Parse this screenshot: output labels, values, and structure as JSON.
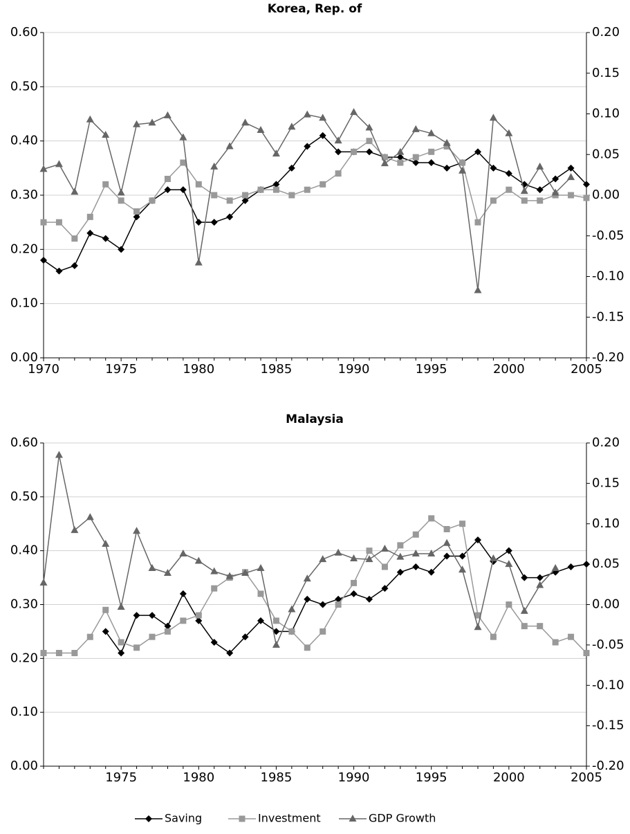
{
  "chart_data": [
    {
      "type": "line",
      "title": "Korea, Rep. of",
      "x": [
        1970,
        1971,
        1972,
        1973,
        1974,
        1975,
        1976,
        1977,
        1978,
        1979,
        1980,
        1981,
        1982,
        1983,
        1984,
        1985,
        1986,
        1987,
        1988,
        1989,
        1990,
        1991,
        1992,
        1993,
        1994,
        1995,
        1996,
        1997,
        1998,
        1999,
        2000,
        2001,
        2002,
        2003,
        2004,
        2005
      ],
      "xlim": [
        1970,
        2005
      ],
      "xticks": [
        1970,
        1975,
        1980,
        1985,
        1990,
        1995,
        2000,
        2005
      ],
      "ylim": [
        0,
        0.6
      ],
      "yticks": [
        {
          "value": 0,
          "label": "0.00"
        },
        {
          "value": 0.1,
          "label": "0.10"
        },
        {
          "value": 0.2,
          "label": "0.20"
        },
        {
          "value": 0.3,
          "label": "0.30"
        },
        {
          "value": 0.4,
          "label": "0.40"
        },
        {
          "value": 0.5,
          "label": "0.50"
        },
        {
          "value": 0.6,
          "label": "0.60"
        }
      ],
      "y2lim": [
        -0.2,
        0.2
      ],
      "y2ticks": [
        {
          "value": -0.2,
          "label": "-0.20"
        },
        {
          "value": -0.15,
          "label": "-0.15"
        },
        {
          "value": -0.1,
          "label": "-0.10"
        },
        {
          "value": -0.05,
          "label": "-0.05"
        },
        {
          "value": 0,
          "label": "0.00"
        },
        {
          "value": 0.05,
          "label": "0.05"
        },
        {
          "value": 0.1,
          "label": "0.10"
        },
        {
          "value": 0.15,
          "label": "0.15"
        },
        {
          "value": 0.2,
          "label": "0.20"
        }
      ],
      "grid": true,
      "series": [
        {
          "color": "#000000",
          "marker": "diamond",
          "values": [
            0.18,
            0.16,
            0.17,
            0.23,
            0.22,
            0.2,
            0.26,
            0.29,
            0.31,
            0.31,
            0.25,
            0.25,
            0.26,
            0.29,
            0.31,
            0.32,
            0.35,
            0.39,
            0.41,
            0.38,
            0.38,
            0.38,
            0.37,
            0.37,
            0.36,
            0.36,
            0.35,
            0.36,
            0.38,
            0.35,
            0.34,
            0.32,
            0.31,
            0.33,
            0.35,
            0.32
          ]
        },
        {
          "color": "#999999",
          "marker": "square",
          "values": [
            0.25,
            0.25,
            0.22,
            0.26,
            0.32,
            0.29,
            0.27,
            0.29,
            0.33,
            0.36,
            0.32,
            0.3,
            0.29,
            0.3,
            0.31,
            0.31,
            0.3,
            0.31,
            0.32,
            0.34,
            0.38,
            0.4,
            0.37,
            0.36,
            0.37,
            0.38,
            0.39,
            0.36,
            0.25,
            0.29,
            0.31,
            0.29,
            0.29,
            0.3,
            0.3,
            0.295
          ]
        },
        {
          "color": "#666666",
          "marker": "triangle",
          "axis": "y2",
          "values": [
            0.032,
            0.038,
            0.004,
            0.093,
            0.074,
            0.003,
            0.087,
            0.089,
            0.098,
            0.071,
            -0.083,
            0.035,
            0.06,
            0.089,
            0.08,
            0.051,
            0.084,
            0.099,
            0.095,
            0.067,
            0.102,
            0.083,
            0.039,
            0.053,
            0.081,
            0.076,
            0.064,
            0.03,
            -0.117,
            0.095,
            0.076,
            0.005,
            0.035,
            0.003,
            0.022,
            null
          ]
        }
      ]
    },
    {
      "type": "line",
      "title": "Malaysia",
      "x": [
        1970,
        1971,
        1972,
        1973,
        1974,
        1975,
        1976,
        1977,
        1978,
        1979,
        1980,
        1981,
        1982,
        1983,
        1984,
        1985,
        1986,
        1987,
        1988,
        1989,
        1990,
        1991,
        1992,
        1993,
        1994,
        1995,
        1996,
        1997,
        1998,
        1999,
        2000,
        2001,
        2002,
        2003,
        2004,
        2005
      ],
      "xlim": [
        1970,
        2005
      ],
      "xticks": [
        1975,
        1980,
        1985,
        1990,
        1995,
        2000,
        2005
      ],
      "ylim": [
        0,
        0.6
      ],
      "yticks": [
        {
          "value": 0,
          "label": "0.00"
        },
        {
          "value": 0.1,
          "label": "0.10"
        },
        {
          "value": 0.2,
          "label": "0.20"
        },
        {
          "value": 0.3,
          "label": "0.30"
        },
        {
          "value": 0.4,
          "label": "0.40"
        },
        {
          "value": 0.5,
          "label": "0.50"
        },
        {
          "value": 0.6,
          "label": "0.60"
        }
      ],
      "y2lim": [
        -0.2,
        0.2
      ],
      "y2ticks": [
        {
          "value": -0.2,
          "label": "-0.20"
        },
        {
          "value": -0.15,
          "label": "-0.15"
        },
        {
          "value": -0.1,
          "label": "-0.10"
        },
        {
          "value": -0.05,
          "label": "-0.05"
        },
        {
          "value": 0,
          "label": "0.00"
        },
        {
          "value": 0.05,
          "label": "0.05"
        },
        {
          "value": 0.1,
          "label": "0.10"
        },
        {
          "value": 0.15,
          "label": "0.15"
        },
        {
          "value": 0.2,
          "label": "0.20"
        }
      ],
      "grid": true,
      "series": [
        {
          "name": "Saving",
          "color": "#000000",
          "marker": "diamond",
          "values": [
            null,
            null,
            null,
            null,
            0.25,
            0.21,
            0.28,
            0.28,
            0.26,
            0.32,
            0.27,
            0.23,
            0.21,
            0.24,
            0.27,
            0.25,
            0.25,
            0.31,
            0.3,
            0.31,
            0.32,
            0.31,
            0.33,
            0.36,
            0.37,
            0.36,
            0.39,
            0.39,
            0.42,
            0.38,
            0.4,
            0.35,
            0.35,
            0.36,
            0.37,
            0.375
          ]
        },
        {
          "name": "Investment",
          "color": "#999999",
          "marker": "square",
          "values": [
            0.21,
            0.21,
            0.21,
            0.24,
            0.29,
            0.23,
            0.22,
            0.24,
            0.25,
            0.27,
            0.28,
            0.33,
            0.35,
            0.36,
            0.32,
            0.27,
            0.25,
            0.22,
            0.25,
            0.3,
            0.34,
            0.4,
            0.37,
            0.41,
            0.43,
            0.46,
            0.44,
            0.45,
            0.28,
            0.24,
            0.3,
            0.26,
            0.26,
            0.23,
            0.24,
            0.21
          ]
        },
        {
          "name": "GDP Growth",
          "color": "#666666",
          "marker": "triangle",
          "axis": "y2",
          "values": [
            0.027,
            0.185,
            0.092,
            0.108,
            0.075,
            -0.003,
            0.091,
            0.045,
            0.039,
            0.063,
            0.054,
            0.041,
            0.035,
            0.039,
            0.045,
            -0.05,
            -0.006,
            0.032,
            0.056,
            0.064,
            0.057,
            0.056,
            0.069,
            0.059,
            0.063,
            0.063,
            0.076,
            0.043,
            -0.028,
            0.057,
            0.05,
            -0.008,
            0.024,
            0.045,
            null,
            null
          ]
        }
      ]
    }
  ]
}
